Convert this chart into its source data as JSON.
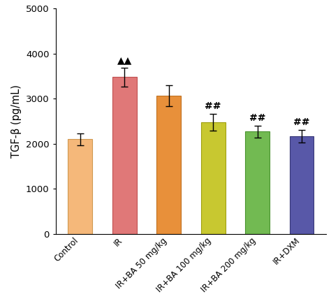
{
  "categories": [
    "Control",
    "IR",
    "IR+BA 50 mg/kg",
    "IR+BA 100 mg/kg",
    "IR+BA 200 mg/kg",
    "IR+DXM"
  ],
  "values": [
    2100,
    3480,
    3070,
    2480,
    2270,
    2170
  ],
  "errors": [
    130,
    210,
    230,
    190,
    130,
    140
  ],
  "bar_colors": [
    "#F5B87A",
    "#E07878",
    "#E8903A",
    "#C8C830",
    "#72BA52",
    "#5858A8"
  ],
  "bar_edgecolors": [
    "#D09850",
    "#C05050",
    "#C07020",
    "#A0A010",
    "#4A9430",
    "#383878"
  ],
  "ylabel": "TGF-β (pg/mL)",
  "ylim": [
    0,
    5000
  ],
  "yticks": [
    0,
    1000,
    2000,
    3000,
    4000,
    5000
  ],
  "annotations": [
    {
      "bar_idx": 1,
      "text": "▲▲",
      "fontsize": 10,
      "color": "black"
    },
    {
      "bar_idx": 3,
      "text": "##",
      "fontsize": 10,
      "color": "black"
    },
    {
      "bar_idx": 4,
      "text": "##",
      "fontsize": 10,
      "color": "black"
    },
    {
      "bar_idx": 5,
      "text": "##",
      "fontsize": 10,
      "color": "black"
    }
  ],
  "figsize": [
    4.74,
    4.28
  ],
  "dpi": 100,
  "bar_width": 0.55
}
